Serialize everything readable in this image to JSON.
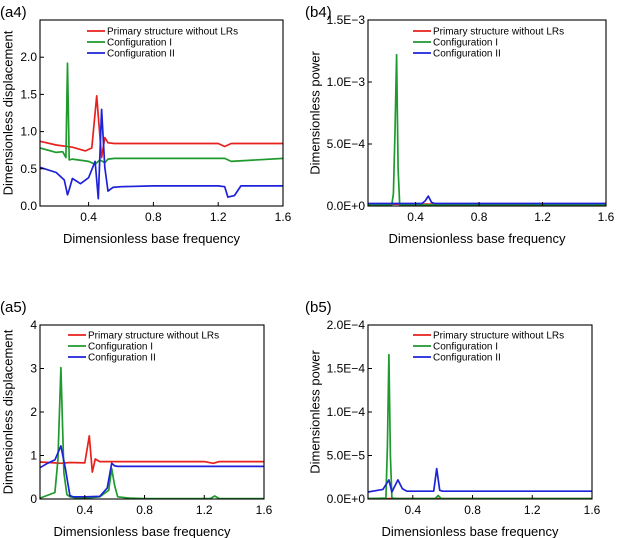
{
  "chart_data": [
    {
      "panel_label": "(a4)",
      "type": "line",
      "xlabel": "Dimensionless base frequency",
      "ylabel": "Dimensionless displacement",
      "xlim": [
        0.1,
        1.6
      ],
      "ylim": [
        0,
        2.5
      ],
      "xticks": [
        0.4,
        0.8,
        1.2,
        1.6
      ],
      "xtick_labels": [
        "0.4",
        "0.8",
        "1.2",
        "1.6"
      ],
      "yticks": [
        0,
        0.5,
        1.0,
        1.5,
        2.0
      ],
      "ytick_labels": [
        "0.0",
        "0.5",
        "1.0",
        "1.5",
        "2.0"
      ],
      "legend": [
        "Primary structure without LRs",
        "Configuration I",
        "Configuration II"
      ],
      "series": [
        {
          "name": "Primary structure without LRs",
          "color": "#e8211d",
          "x": [
            0.1,
            0.2,
            0.3,
            0.38,
            0.42,
            0.45,
            0.48,
            0.5,
            0.52,
            0.56,
            0.6,
            0.8,
            1.0,
            1.2,
            1.24,
            1.28,
            1.4,
            1.6
          ],
          "y": [
            0.87,
            0.82,
            0.79,
            0.74,
            0.78,
            1.48,
            0.65,
            0.92,
            0.85,
            0.84,
            0.84,
            0.84,
            0.84,
            0.84,
            0.8,
            0.84,
            0.84,
            0.84
          ]
        },
        {
          "name": "Configuration I",
          "color": "#1f9a2e",
          "x": [
            0.1,
            0.2,
            0.24,
            0.26,
            0.27,
            0.28,
            0.3,
            0.4,
            0.44,
            0.47,
            0.5,
            0.52,
            0.56,
            0.6,
            1.0,
            1.24,
            1.28,
            1.6
          ],
          "y": [
            0.78,
            0.72,
            0.73,
            0.65,
            1.92,
            0.62,
            0.63,
            0.6,
            0.56,
            0.62,
            0.58,
            0.63,
            0.64,
            0.64,
            0.64,
            0.64,
            0.6,
            0.64
          ]
        },
        {
          "name": "Configuration II",
          "color": "#1d22d8",
          "x": [
            0.1,
            0.2,
            0.25,
            0.27,
            0.28,
            0.3,
            0.35,
            0.4,
            0.44,
            0.46,
            0.48,
            0.5,
            0.52,
            0.55,
            0.6,
            0.8,
            1.0,
            1.2,
            1.24,
            1.26,
            1.3,
            1.34,
            1.4,
            1.6
          ],
          "y": [
            0.52,
            0.45,
            0.35,
            0.15,
            0.22,
            0.37,
            0.3,
            0.38,
            0.6,
            0.1,
            1.3,
            0.52,
            0.2,
            0.25,
            0.26,
            0.27,
            0.27,
            0.27,
            0.26,
            0.12,
            0.14,
            0.27,
            0.27,
            0.27
          ]
        }
      ]
    },
    {
      "panel_label": "(b4)",
      "type": "line",
      "xlabel": "Dimensionless base frequency",
      "ylabel": "Dimensionless power",
      "xlim": [
        0.1,
        1.6
      ],
      "ylim": [
        0,
        0.0015
      ],
      "xticks": [
        0.4,
        0.8,
        1.2,
        1.6
      ],
      "xtick_labels": [
        "0.4",
        "0.8",
        "1.2",
        "1.6"
      ],
      "yticks": [
        0,
        0.0005,
        0.001,
        0.0015
      ],
      "ytick_labels": [
        "0.0E+0",
        "5.0E−4",
        "1.0E−3",
        "1.5E−3"
      ],
      "legend": [
        "Primary structure without LRs",
        "Configuration I",
        "Configuration II"
      ],
      "series": [
        {
          "name": "Primary structure without LRs",
          "color": "#e8211d",
          "x": [
            0.1,
            1.6
          ],
          "y": [
            1.5e-05,
            1.5e-05
          ]
        },
        {
          "name": "Configuration I",
          "color": "#1f9a2e",
          "x": [
            0.1,
            0.25,
            0.26,
            0.27,
            0.28,
            0.29,
            0.3,
            1.6
          ],
          "y": [
            1e-05,
            1e-05,
            0.0001,
            0.0006,
            0.00122,
            0.0003,
            1e-05,
            1e-05
          ]
        },
        {
          "name": "Configuration II",
          "color": "#1d22d8",
          "x": [
            0.1,
            0.44,
            0.46,
            0.48,
            0.5,
            0.52,
            1.6
          ],
          "y": [
            2e-05,
            2e-05,
            4e-05,
            8e-05,
            3e-05,
            2e-05,
            2e-05
          ]
        }
      ]
    },
    {
      "panel_label": "(a5)",
      "type": "line",
      "xlabel": "Dimensionless base frequency",
      "ylabel": "Dimensionless displacement",
      "xlim": [
        0.1,
        1.6
      ],
      "ylim": [
        0,
        4
      ],
      "xticks": [
        0.4,
        0.8,
        1.2,
        1.6
      ],
      "xtick_labels": [
        "0.4",
        "0.8",
        "1.2",
        "1.6"
      ],
      "yticks": [
        0,
        1,
        2,
        3,
        4
      ],
      "ytick_labels": [
        "0",
        "1",
        "2",
        "3",
        "4"
      ],
      "legend": [
        "Primary structure without LRs",
        "Configuration I",
        "Configuration II"
      ],
      "series": [
        {
          "name": "Primary structure without LRs",
          "color": "#e8211d",
          "x": [
            0.1,
            0.2,
            0.24,
            0.3,
            0.4,
            0.43,
            0.45,
            0.47,
            0.5,
            0.55,
            0.6,
            1.0,
            1.2,
            1.26,
            1.3,
            1.6
          ],
          "y": [
            0.85,
            0.83,
            0.82,
            0.84,
            0.83,
            1.45,
            0.62,
            0.92,
            0.86,
            0.86,
            0.86,
            0.86,
            0.86,
            0.82,
            0.86,
            0.86
          ]
        },
        {
          "name": "Configuration I",
          "color": "#1f9a2e",
          "x": [
            0.1,
            0.2,
            0.22,
            0.24,
            0.26,
            0.28,
            0.3,
            0.35,
            0.4,
            0.5,
            0.56,
            0.58,
            0.6,
            0.62,
            0.7,
            0.8,
            1.0,
            1.24,
            1.27,
            1.3,
            1.6
          ],
          "y": [
            0.02,
            0.15,
            0.9,
            3.02,
            0.6,
            0.1,
            0.05,
            0.02,
            0.02,
            0.05,
            0.2,
            0.7,
            0.3,
            0.05,
            0.02,
            0.01,
            0.01,
            0.01,
            0.07,
            0.01,
            0.01
          ]
        },
        {
          "name": "Configuration II",
          "color": "#1d22d8",
          "x": [
            0.1,
            0.15,
            0.2,
            0.24,
            0.27,
            0.3,
            0.32,
            0.4,
            0.5,
            0.55,
            0.58,
            0.6,
            0.62,
            0.7,
            1.0,
            1.6
          ],
          "y": [
            0.72,
            0.82,
            0.9,
            1.22,
            0.7,
            0.08,
            0.05,
            0.05,
            0.06,
            0.25,
            0.82,
            0.76,
            0.75,
            0.75,
            0.75,
            0.75
          ]
        }
      ]
    },
    {
      "panel_label": "(b5)",
      "type": "line",
      "xlabel": "Dimensionless base frequency",
      "ylabel": "Dimensionless power",
      "xlim": [
        0.1,
        1.6
      ],
      "ylim": [
        0,
        0.0002
      ],
      "xticks": [
        0.4,
        0.8,
        1.2,
        1.6
      ],
      "xtick_labels": [
        "0.4",
        "0.8",
        "1.2",
        "1.6"
      ],
      "yticks": [
        0,
        5e-05,
        0.0001,
        0.00015,
        0.0002
      ],
      "ytick_labels": [
        "0.0E+0",
        "5.0E−5",
        "1.0E−4",
        "1.5E−4",
        "2.0E−4"
      ],
      "legend": [
        "Primary structure without LRs",
        "Configuration I",
        "Configuration II"
      ],
      "series": [
        {
          "name": "Primary structure without LRs",
          "color": "#e8211d",
          "x": [
            0.1,
            1.6
          ],
          "y": [
            5e-07,
            5e-07
          ]
        },
        {
          "name": "Configuration I",
          "color": "#1f9a2e",
          "x": [
            0.1,
            0.22,
            0.23,
            0.24,
            0.25,
            0.26,
            0.3,
            0.55,
            0.57,
            0.59,
            1.6
          ],
          "y": [
            5e-07,
            1e-06,
            6e-05,
            0.000166,
            5e-05,
            1e-06,
            5e-07,
            5e-07,
            4e-06,
            5e-07,
            5e-07
          ]
        },
        {
          "name": "Configuration II",
          "color": "#1d22d8",
          "x": [
            0.1,
            0.2,
            0.24,
            0.26,
            0.28,
            0.3,
            0.33,
            0.36,
            0.45,
            0.54,
            0.56,
            0.58,
            0.6,
            0.7,
            1.0,
            1.6
          ],
          "y": [
            8e-06,
            1.1e-05,
            2.2e-05,
            8e-06,
            1.5e-05,
            2.2e-05,
            1.2e-05,
            9e-06,
            9e-06,
            9e-06,
            3.5e-05,
            1e-05,
            9e-06,
            9e-06,
            9e-06,
            9e-06
          ]
        }
      ]
    }
  ]
}
